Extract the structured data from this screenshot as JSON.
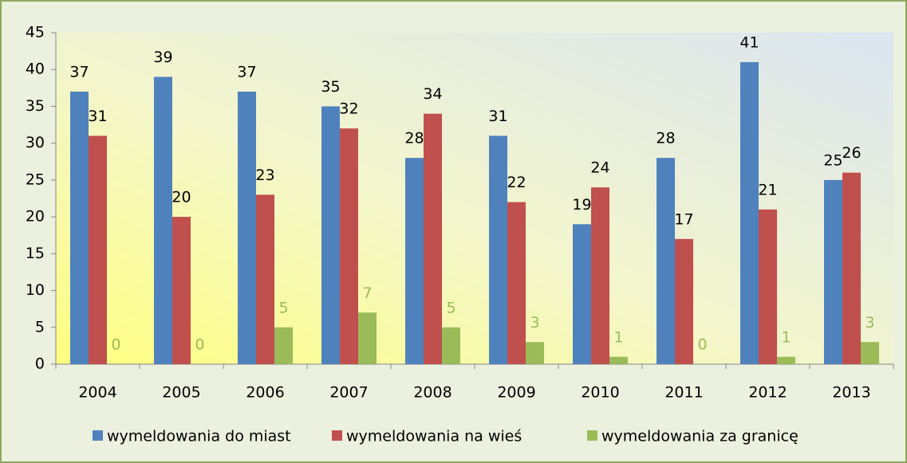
{
  "chart_data": {
    "type": "bar",
    "categories": [
      "2004",
      "2005",
      "2006",
      "2007",
      "2008",
      "2009",
      "2010",
      "2011",
      "2012",
      "2013"
    ],
    "series": [
      {
        "name": "wymeldowania do miast",
        "color": "#4f81bd",
        "label_color": "#000000",
        "values": [
          37,
          39,
          37,
          35,
          28,
          31,
          19,
          28,
          41,
          25
        ]
      },
      {
        "name": "wymeldowania na wieś",
        "color": "#c0504d",
        "label_color": "#000000",
        "values": [
          31,
          20,
          23,
          32,
          34,
          22,
          24,
          17,
          21,
          26
        ]
      },
      {
        "name": "wymeldowania za granicę",
        "color": "#9bbb59",
        "label_color": "#9bbb59",
        "values": [
          0,
          0,
          5,
          7,
          5,
          3,
          1,
          0,
          1,
          3
        ]
      }
    ],
    "ylim": [
      0,
      45
    ],
    "yticks": [
      0,
      5,
      10,
      15,
      20,
      25,
      30,
      35,
      40,
      45
    ],
    "grid": false,
    "legend": "bottom"
  }
}
